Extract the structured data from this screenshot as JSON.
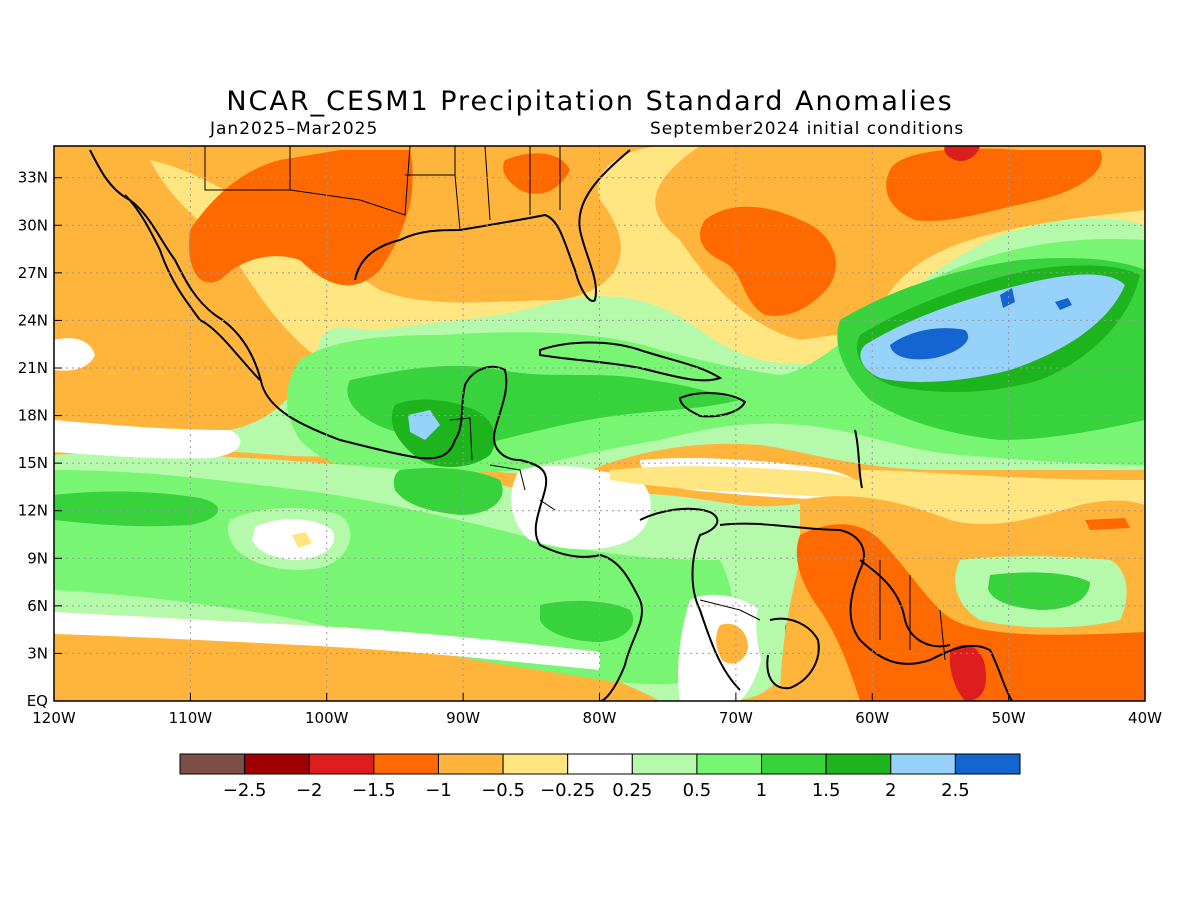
{
  "title": "NCAR_CESM1 Precipitation Standard Anomalies",
  "period": "Jan2025–Mar2025",
  "initial_conditions": "September2024 initial conditions",
  "lon_ticks": [
    "120W",
    "110W",
    "100W",
    "90W",
    "80W",
    "70W",
    "60W",
    "50W",
    "40W"
  ],
  "lat_ticks": [
    "33N",
    "30N",
    "27N",
    "24N",
    "21N",
    "18N",
    "15N",
    "12N",
    "9N",
    "6N",
    "3N",
    "EQ"
  ],
  "colorbar": {
    "colors": [
      "#7d5047",
      "#a00000",
      "#dc1e1e",
      "#ff6a00",
      "#ffb43c",
      "#ffe680",
      "#ffffff",
      "#b4faaa",
      "#78f573",
      "#37d23c",
      "#1eb41e",
      "#96d2fa",
      "#1464d2"
    ],
    "labels": [
      "−2.5",
      "−2",
      "−1.5",
      "−1",
      "−0.5",
      "−0.25",
      "0.25",
      "0.5",
      "1",
      "1.5",
      "2",
      "2.5"
    ]
  },
  "palette": {
    "orange": "#ffb43c",
    "dark_orange": "#ff6a00",
    "yellow": "#ffe680",
    "light_green": "#b4faaa",
    "green": "#78f573",
    "mid_green": "#37d23c",
    "dark_green": "#1eb41e",
    "light_blue": "#96d2fa",
    "blue": "#1464d2",
    "red": "#dc1e1e"
  }
}
